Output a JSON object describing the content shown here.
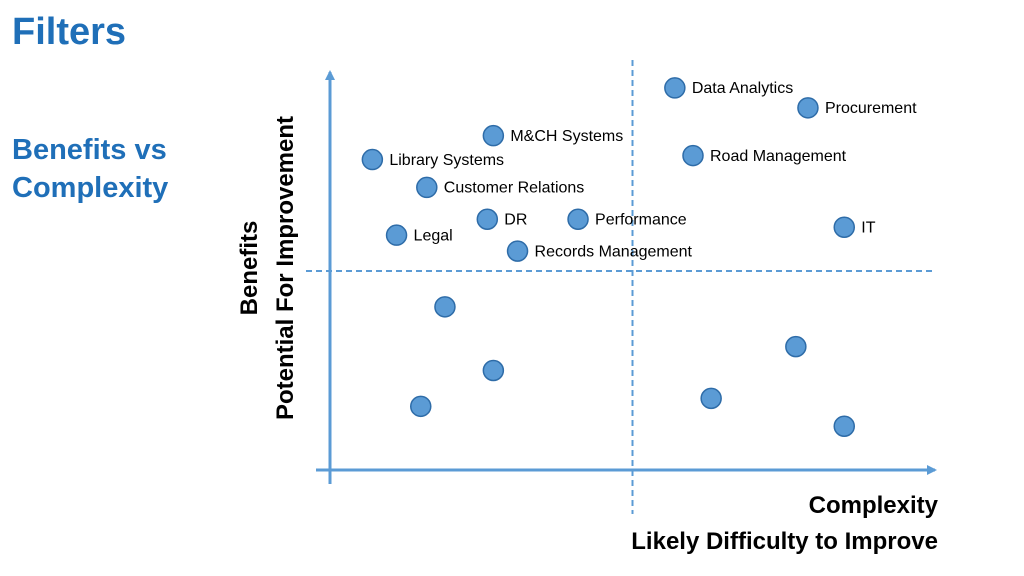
{
  "slide": {
    "title": "Filters",
    "subtitle_line1": "Benefits vs",
    "subtitle_line2": "Complexity"
  },
  "chart_data": {
    "type": "scatter",
    "title": "",
    "xlabel": [
      "Complexity",
      "Likely Difficulty to Improve"
    ],
    "ylabel": [
      "Benefits",
      "Potential For Improvement"
    ],
    "xlim": [
      0,
      100
    ],
    "ylim": [
      0,
      100
    ],
    "quadrant_divider": {
      "x": 50,
      "y": 50
    },
    "grid": false,
    "legend": "none",
    "colors": {
      "marker": "#5b9bd5",
      "marker_edge": "#2e6ca8",
      "axis": "#5b9bd5",
      "divider": "#5b9bd5"
    },
    "points": [
      {
        "label": "Data Analytics",
        "x": 57,
        "y": 96
      },
      {
        "label": "Procurement",
        "x": 79,
        "y": 91
      },
      {
        "label": "M&CH Systems",
        "x": 27,
        "y": 84
      },
      {
        "label": "Library Systems",
        "x": 7,
        "y": 78
      },
      {
        "label": "Road Management",
        "x": 60,
        "y": 79
      },
      {
        "label": "Customer Relations",
        "x": 16,
        "y": 71
      },
      {
        "label": "DR",
        "x": 26,
        "y": 63
      },
      {
        "label": "Performance",
        "x": 41,
        "y": 63
      },
      {
        "label": "IT",
        "x": 85,
        "y": 61
      },
      {
        "label": "Legal",
        "x": 11,
        "y": 59
      },
      {
        "label": "Records Management",
        "x": 31,
        "y": 55
      },
      {
        "label": "",
        "x": 19,
        "y": 41
      },
      {
        "label": "",
        "x": 27,
        "y": 25
      },
      {
        "label": "",
        "x": 15,
        "y": 16
      },
      {
        "label": "",
        "x": 77,
        "y": 31
      },
      {
        "label": "",
        "x": 63,
        "y": 18
      },
      {
        "label": "",
        "x": 85,
        "y": 11
      }
    ]
  }
}
